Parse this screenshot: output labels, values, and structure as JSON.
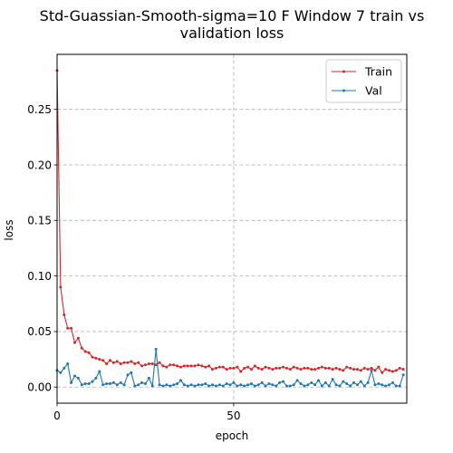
{
  "chart_data": {
    "type": "line",
    "title_lines": [
      "Std-Guassian-Smooth-sigma=10 F Window 7 train vs",
      "validation loss"
    ],
    "xlabel": "epoch",
    "ylabel": "loss",
    "xlim": [
      0,
      99
    ],
    "ylim": [
      -0.0145,
      0.2995
    ],
    "xticks": [
      0,
      50
    ],
    "xtick_labels": [
      "0",
      "50"
    ],
    "yticks": [
      0.0,
      0.05,
      0.1,
      0.15,
      0.2,
      0.25
    ],
    "ytick_labels": [
      "0.00",
      "0.05",
      "0.10",
      "0.15",
      "0.20",
      "0.25"
    ],
    "grid": true,
    "legend_position": "upper-right",
    "series": [
      {
        "name": "Train",
        "color": "#d62728",
        "values": [
          0.285,
          0.09,
          0.065,
          0.053,
          0.053,
          0.04,
          0.044,
          0.035,
          0.032,
          0.031,
          0.027,
          0.026,
          0.025,
          0.024,
          0.021,
          0.024,
          0.022,
          0.023,
          0.021,
          0.022,
          0.022,
          0.023,
          0.021,
          0.022,
          0.019,
          0.02,
          0.021,
          0.021,
          0.02,
          0.022,
          0.019,
          0.018,
          0.02,
          0.02,
          0.019,
          0.018,
          0.019,
          0.019,
          0.019,
          0.019,
          0.02,
          0.019,
          0.018,
          0.019,
          0.016,
          0.017,
          0.018,
          0.018,
          0.016,
          0.017,
          0.017,
          0.018,
          0.014,
          0.017,
          0.018,
          0.016,
          0.019,
          0.017,
          0.016,
          0.018,
          0.017,
          0.016,
          0.017,
          0.017,
          0.018,
          0.017,
          0.016,
          0.018,
          0.017,
          0.016,
          0.017,
          0.017,
          0.016,
          0.016,
          0.017,
          0.018,
          0.017,
          0.017,
          0.016,
          0.017,
          0.016,
          0.015,
          0.018,
          0.017,
          0.016,
          0.016,
          0.015,
          0.017,
          0.016,
          0.017,
          0.015,
          0.018,
          0.013,
          0.016,
          0.015,
          0.014,
          0.015,
          0.017,
          0.016
        ]
      },
      {
        "name": "Val",
        "color": "#1f77b4",
        "values": [
          0.015,
          0.013,
          0.017,
          0.021,
          0.004,
          0.01,
          0.008,
          0.002,
          0.003,
          0.003,
          0.005,
          0.008,
          0.014,
          0.002,
          0.003,
          0.003,
          0.004,
          0.002,
          0.004,
          0.002,
          0.011,
          0.013,
          0.001,
          0.002,
          0.004,
          0.003,
          0.008,
          0.001,
          0.034,
          0.002,
          0.001,
          0.002,
          0.001,
          0.002,
          0.003,
          0.006,
          0.002,
          0.001,
          0.002,
          0.001,
          0.002,
          0.002,
          0.003,
          0.001,
          0.002,
          0.001,
          0.002,
          0.001,
          0.003,
          0.002,
          0.004,
          0.001,
          0.002,
          0.001,
          0.002,
          0.003,
          0.001,
          0.002,
          0.004,
          0.001,
          0.003,
          0.002,
          0.001,
          0.004,
          0.005,
          0.001,
          0.001,
          0.002,
          0.006,
          0.003,
          0.001,
          0.002,
          0.004,
          0.002,
          0.006,
          0.001,
          0.004,
          0.001,
          0.007,
          0.002,
          0.001,
          0.005,
          0.003,
          0.001,
          0.004,
          0.002,
          0.005,
          0.001,
          0.004,
          0.015,
          0.002,
          0.003,
          0.002,
          0.001,
          0.002,
          0.004,
          0.001,
          0.001,
          0.011
        ]
      }
    ]
  }
}
